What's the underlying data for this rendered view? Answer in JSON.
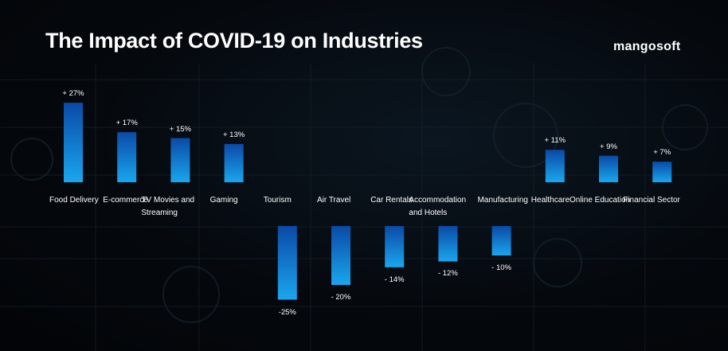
{
  "chart_data": {
    "type": "bar",
    "title": "The Impact of COVID-19 on Industries",
    "brand": "mangosoft",
    "categories": [
      "Food Delivery",
      "E-commerce",
      "TV Movies and Streaming",
      "Gaming",
      "Tourism",
      "Air Travel",
      "Car Rentals",
      "Accommodation and Hotels",
      "Manufacturing",
      "Healthcare",
      "Online Education",
      "Financial Sector"
    ],
    "values": [
      27,
      17,
      15,
      13,
      -25,
      -20,
      -14,
      -12,
      -10,
      11,
      9,
      7
    ],
    "value_labels": [
      "+ 27%",
      "+ 17%",
      "+ 15%",
      "+ 13%",
      "-25%",
      "- 20%",
      "- 14%",
      "- 12%",
      "- 10%",
      "+ 11%",
      "+ 9%",
      "+ 7%"
    ],
    "color": "#1283d8"
  }
}
